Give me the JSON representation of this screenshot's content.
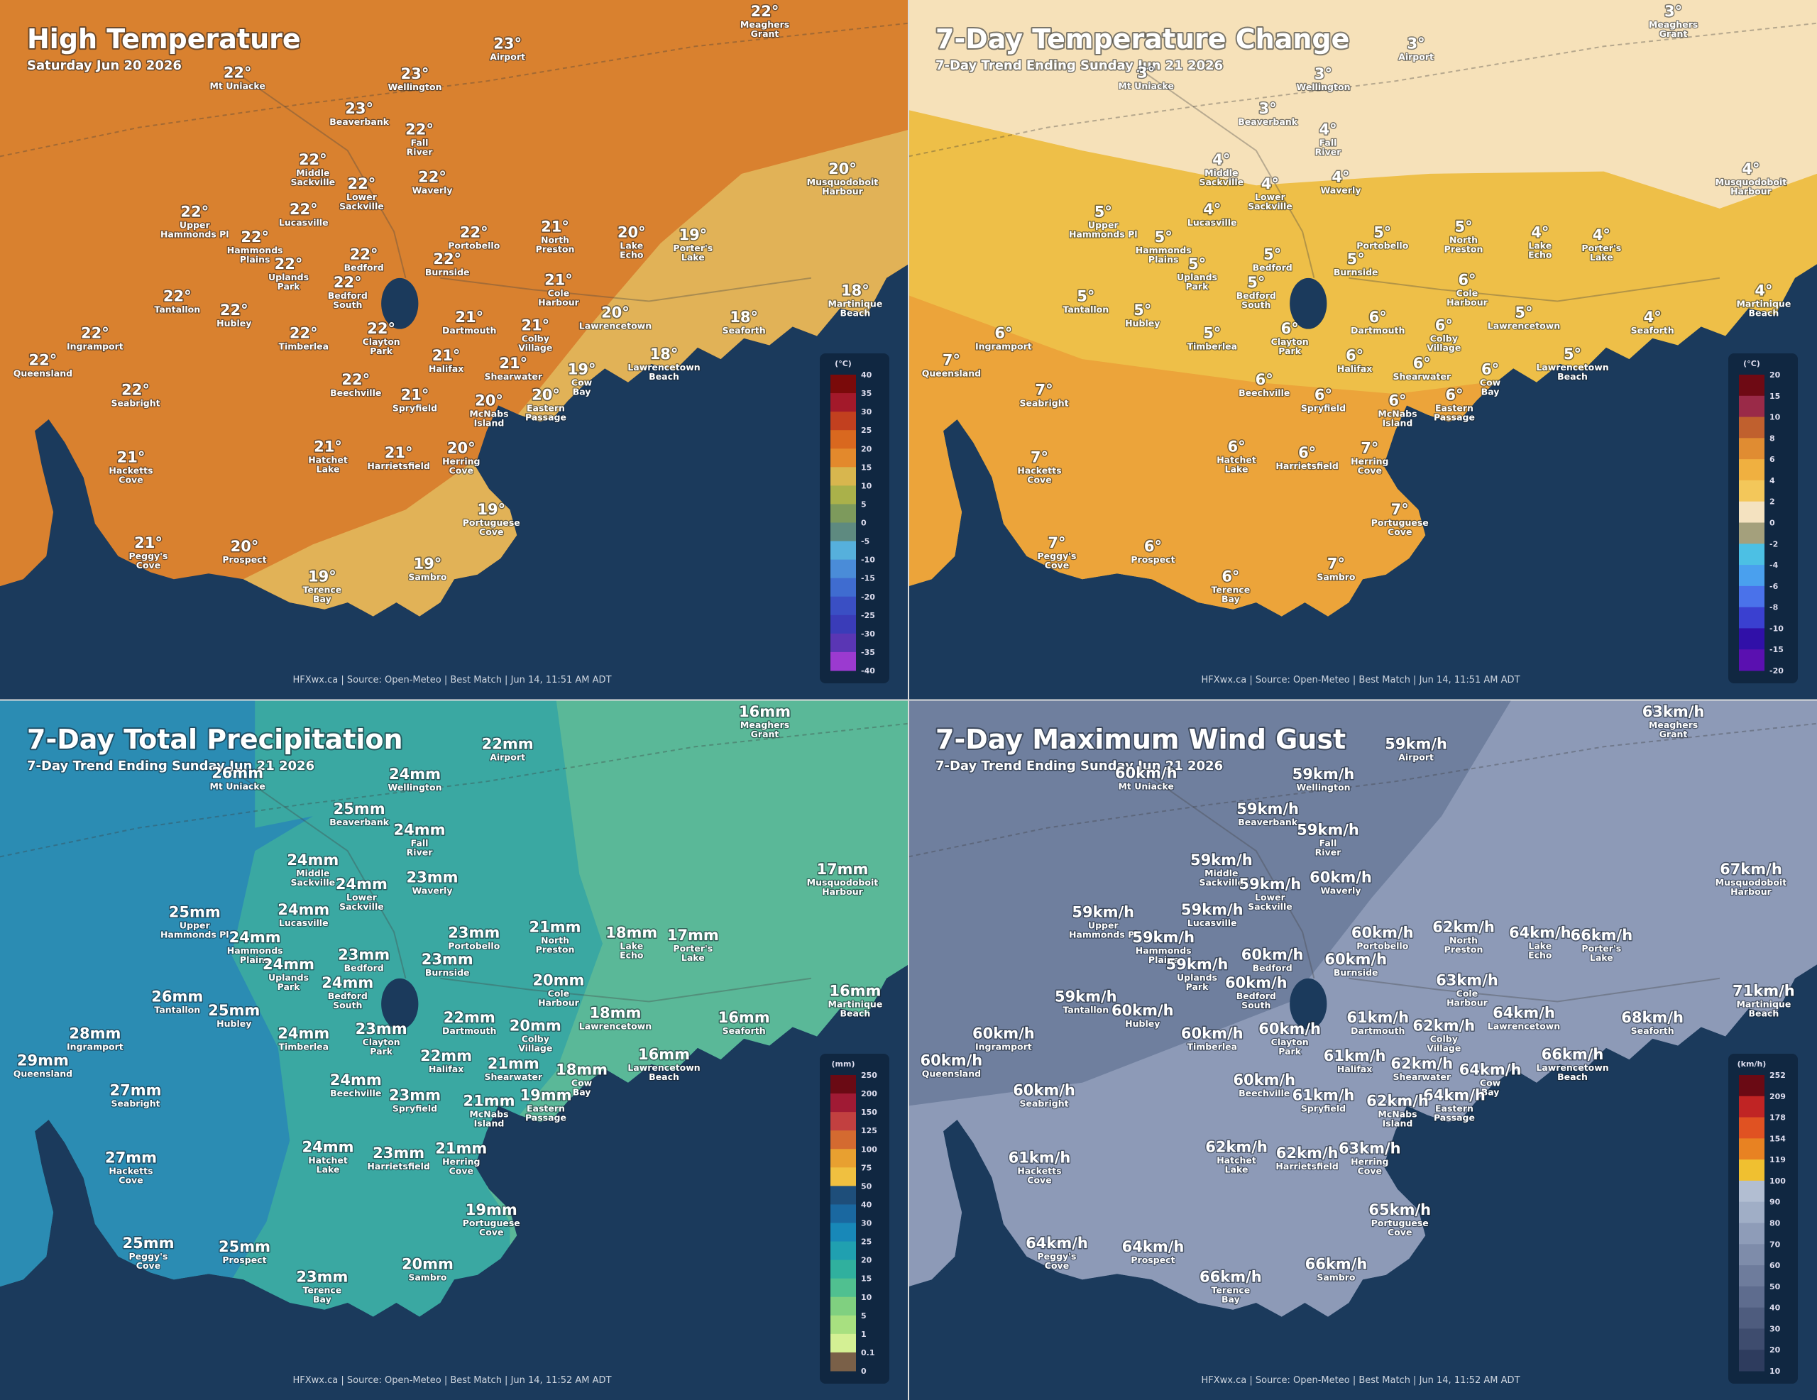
{
  "places": [
    {
      "lines": [
        "Meaghers",
        "Grant"
      ]
    },
    {
      "lines": [
        "Airport"
      ]
    },
    {
      "lines": [
        "Mt Uniacke"
      ]
    },
    {
      "lines": [
        "Wellington"
      ]
    },
    {
      "lines": [
        "Beaverbank"
      ]
    },
    {
      "lines": [
        "Fall",
        "River"
      ]
    },
    {
      "lines": [
        "Middle",
        "Sackville"
      ]
    },
    {
      "lines": [
        "Lower",
        "Sackville"
      ]
    },
    {
      "lines": [
        "Waverly"
      ]
    },
    {
      "lines": [
        "Musquodoboit",
        "Harbour"
      ]
    },
    {
      "lines": [
        "Upper",
        "Hammonds Pl"
      ]
    },
    {
      "lines": [
        "Lucasville"
      ]
    },
    {
      "lines": [
        "Hammonds",
        "Plains"
      ]
    },
    {
      "lines": [
        "Portobello"
      ]
    },
    {
      "lines": [
        "North",
        "Preston"
      ]
    },
    {
      "lines": [
        "Lake",
        "Echo"
      ]
    },
    {
      "lines": [
        "Porter's",
        "Lake"
      ]
    },
    {
      "lines": [
        "Bedford"
      ]
    },
    {
      "lines": [
        "Uplands",
        "Park"
      ]
    },
    {
      "lines": [
        "Burnside"
      ]
    },
    {
      "lines": [
        "Bedford",
        "South"
      ]
    },
    {
      "lines": [
        "Cole",
        "Harbour"
      ]
    },
    {
      "lines": [
        "Tantallon"
      ]
    },
    {
      "lines": [
        "Hubley"
      ]
    },
    {
      "lines": [
        "Martinique",
        "Beach"
      ]
    },
    {
      "lines": [
        "Dartmouth"
      ]
    },
    {
      "lines": [
        "Colby",
        "Village"
      ]
    },
    {
      "lines": [
        "Lawrencetown"
      ]
    },
    {
      "lines": [
        "Seaforth"
      ]
    },
    {
      "lines": [
        "Ingramport"
      ]
    },
    {
      "lines": [
        "Timberlea"
      ]
    },
    {
      "lines": [
        "Clayton",
        "Park"
      ]
    },
    {
      "lines": [
        "Halifax"
      ]
    },
    {
      "lines": [
        "Shearwater"
      ]
    },
    {
      "lines": [
        "Lawrencetown",
        "Beach"
      ]
    },
    {
      "lines": [
        "Queensland"
      ]
    },
    {
      "lines": [
        "Cow",
        "Bay"
      ]
    },
    {
      "lines": [
        "Beechville"
      ]
    },
    {
      "lines": [
        "Eastern",
        "Passage"
      ]
    },
    {
      "lines": [
        "Seabright"
      ]
    },
    {
      "lines": [
        "Spryfield"
      ]
    },
    {
      "lines": [
        "McNabs",
        "Island"
      ]
    },
    {
      "lines": [
        "Hatchet",
        "Lake"
      ]
    },
    {
      "lines": [
        "Harrietsfield"
      ]
    },
    {
      "lines": [
        "Herring",
        "Cove"
      ]
    },
    {
      "lines": [
        "Hacketts",
        "Cove"
      ]
    },
    {
      "lines": [
        "Portuguese",
        "Cove"
      ]
    },
    {
      "lines": [
        "Peggy's",
        "Cove"
      ]
    },
    {
      "lines": [
        "Prospect"
      ]
    },
    {
      "lines": [
        "Terence",
        "Bay"
      ]
    },
    {
      "lines": [
        "Sambro"
      ]
    }
  ],
  "panels": [
    {
      "title": "High Temperature",
      "subtitle": "Saturday Jun 20 2026",
      "credit": "HFXwx.ca | Source: Open-Meteo | Best Match | Jun 14, 11:51 AM ADT",
      "legend": {
        "unit": "(°C)",
        "ticks": [
          40,
          35,
          30,
          25,
          20,
          15,
          10,
          5,
          0,
          -5,
          -10,
          -15,
          -20,
          -25,
          -30,
          -35,
          -40
        ],
        "colors": [
          "#7a0a0a",
          "#a3192a",
          "#c2401f",
          "#d9681f",
          "#e3892c",
          "#d8b64e",
          "#aab14a",
          "#7d9a5c",
          "#5e8a80",
          "#56b0dc",
          "#4a8cd8",
          "#3f6cd0",
          "#3a4fc4",
          "#3a3cb8",
          "#5a36b4",
          "#9b3ad0"
        ]
      },
      "values": [
        "22°",
        "23°",
        "22°",
        "23°",
        "23°",
        "22°",
        "22°",
        "22°",
        "22°",
        "20°",
        "22°",
        "22°",
        "22°",
        "22°",
        "21°",
        "20°",
        "19°",
        "22°",
        "22°",
        "22°",
        "22°",
        "21°",
        "22°",
        "22°",
        "18°",
        "21°",
        "21°",
        "20°",
        "18°",
        "22°",
        "22°",
        "22°",
        "21°",
        "21°",
        "18°",
        "22°",
        "19°",
        "22°",
        "20°",
        "22°",
        "21°",
        "20°",
        "21°",
        "21°",
        "20°",
        "21°",
        "19°",
        "21°",
        "20°",
        "19°",
        "19°"
      ]
    },
    {
      "title": "7-Day Temperature Change",
      "subtitle": "7-Day Trend Ending Sunday Jun 21 2026",
      "credit": "HFXwx.ca | Source: Open-Meteo | Best Match | Jun 14, 11:51 AM ADT",
      "legend": {
        "unit": "(°C)",
        "ticks": [
          20,
          15,
          10,
          8,
          6,
          4,
          2,
          0,
          -2,
          -4,
          -6,
          -8,
          -10,
          -15,
          -20
        ],
        "colors": [
          "#6e0a14",
          "#9a2a48",
          "#c0602e",
          "#e08c32",
          "#f0b040",
          "#f3c75a",
          "#f4e2c0",
          "#a4a07c",
          "#4cc0e4",
          "#4aa0ee",
          "#4a72ea",
          "#3a40d0",
          "#3010a8",
          "#5a10b0"
        ]
      },
      "values": [
        "3°",
        "3°",
        "3°",
        "3°",
        "3°",
        "4°",
        "4°",
        "4°",
        "4°",
        "4°",
        "5°",
        "4°",
        "5°",
        "5°",
        "5°",
        "4°",
        "4°",
        "5°",
        "5°",
        "5°",
        "5°",
        "6°",
        "5°",
        "5°",
        "4°",
        "6°",
        "6°",
        "5°",
        "4°",
        "6°",
        "5°",
        "6°",
        "6°",
        "6°",
        "5°",
        "7°",
        "6°",
        "6°",
        "6°",
        "7°",
        "6°",
        "6°",
        "6°",
        "6°",
        "7°",
        "7°",
        "7°",
        "7°",
        "6°",
        "6°",
        "7°"
      ]
    },
    {
      "title": "7-Day Total Precipitation",
      "subtitle": "7-Day Trend Ending Sunday Jun 21 2026",
      "credit": "HFXwx.ca | Source: Open-Meteo | Best Match | Jun 14, 11:52 AM ADT",
      "legend": {
        "unit": "(mm)",
        "ticks": [
          250,
          200,
          150,
          125,
          100,
          75,
          50,
          40,
          30,
          25,
          20,
          15,
          10,
          5,
          1,
          0.1,
          0
        ],
        "colors": [
          "#6a0a14",
          "#a01a34",
          "#c24040",
          "#d46a30",
          "#e8a030",
          "#f0c040",
          "#1e4e7a",
          "#1a68a0",
          "#1888b8",
          "#20a0b0",
          "#30b09e",
          "#50c090",
          "#80d080",
          "#a8e080",
          "#d4f094",
          "#7a6048"
        ]
      },
      "values": [
        "16mm",
        "22mm",
        "26mm",
        "24mm",
        "25mm",
        "24mm",
        "24mm",
        "24mm",
        "23mm",
        "17mm",
        "25mm",
        "24mm",
        "24mm",
        "23mm",
        "21mm",
        "18mm",
        "17mm",
        "23mm",
        "24mm",
        "23mm",
        "24mm",
        "20mm",
        "26mm",
        "25mm",
        "16mm",
        "22mm",
        "20mm",
        "18mm",
        "16mm",
        "28mm",
        "24mm",
        "23mm",
        "22mm",
        "21mm",
        "16mm",
        "29mm",
        "18mm",
        "24mm",
        "19mm",
        "27mm",
        "23mm",
        "21mm",
        "24mm",
        "23mm",
        "21mm",
        "27mm",
        "19mm",
        "25mm",
        "25mm",
        "23mm",
        "20mm"
      ]
    },
    {
      "title": "7-Day Maximum Wind Gust",
      "subtitle": "7-Day Trend Ending Sunday Jun 21 2026",
      "credit": "HFXwx.ca | Source: Open-Meteo | Best Match | Jun 14, 11:52 AM ADT",
      "legend": {
        "unit": "(km/h)",
        "ticks": [
          252,
          209,
          178,
          154,
          119,
          100,
          90,
          80,
          70,
          60,
          50,
          40,
          30,
          20,
          10
        ],
        "colors": [
          "#6a0a14",
          "#c02424",
          "#e05222",
          "#e88222",
          "#f0c030",
          "#b2bed2",
          "#a0aec6",
          "#8e9cb8",
          "#7e8caa",
          "#6e7c9c",
          "#5e6c8e",
          "#4e5c7e",
          "#3e4c6e",
          "#2e3c5e"
        ]
      },
      "values": [
        "63km/h",
        "59km/h",
        "60km/h",
        "59km/h",
        "59km/h",
        "59km/h",
        "59km/h",
        "59km/h",
        "60km/h",
        "67km/h",
        "59km/h",
        "59km/h",
        "59km/h",
        "60km/h",
        "62km/h",
        "64km/h",
        "66km/h",
        "60km/h",
        "59km/h",
        "60km/h",
        "60km/h",
        "63km/h",
        "59km/h",
        "60km/h",
        "71km/h",
        "61km/h",
        "62km/h",
        "64km/h",
        "68km/h",
        "60km/h",
        "60km/h",
        "60km/h",
        "61km/h",
        "62km/h",
        "66km/h",
        "60km/h",
        "64km/h",
        "60km/h",
        "64km/h",
        "60km/h",
        "61km/h",
        "62km/h",
        "62km/h",
        "62km/h",
        "63km/h",
        "61km/h",
        "65km/h",
        "64km/h",
        "64km/h",
        "66km/h",
        "66km/h"
      ]
    }
  ]
}
